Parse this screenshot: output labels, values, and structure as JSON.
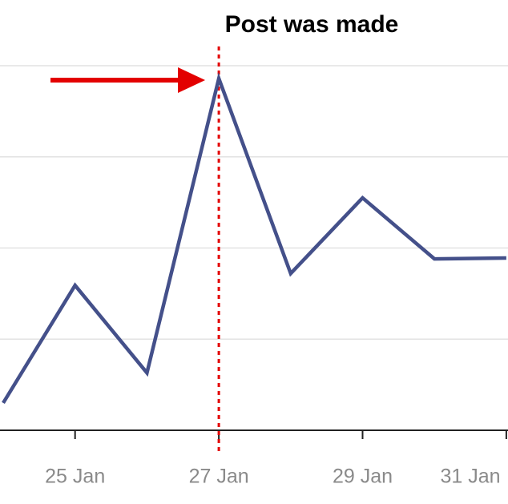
{
  "chart_data": {
    "type": "line",
    "categories": [
      null,
      "25 Jan",
      null,
      "27 Jan",
      null,
      "29 Jan",
      null,
      "31 Jan"
    ],
    "series": [
      {
        "color": "#44508a",
        "values": [
          0.3,
          1.59,
          0.63,
          3.86,
          1.72,
          2.55,
          1.88,
          1.89
        ]
      }
    ],
    "ylim": [
      0,
      4
    ],
    "yticks": [
      1,
      2,
      3,
      4
    ],
    "grid": true,
    "annotation": {
      "text": "Post was made",
      "at": 3,
      "color": "#e30000"
    }
  }
}
